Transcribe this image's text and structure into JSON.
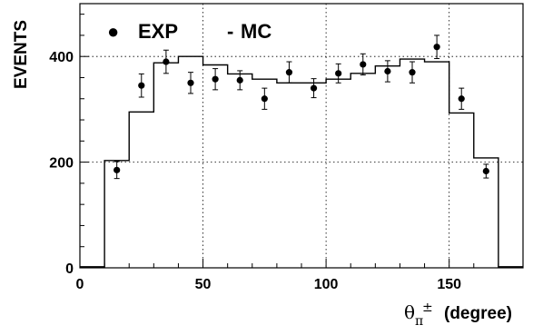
{
  "chart_data": {
    "type": "histogram+scatter",
    "ylabel": "EVENTS",
    "xlabel_symbol": "θ",
    "xlabel_sub": "π",
    "xlabel_sup": "±",
    "xlabel_unit": "(degree)",
    "xlim": [
      0,
      180
    ],
    "ylim": [
      0,
      500
    ],
    "x_ticks": [
      0,
      50,
      100,
      150
    ],
    "y_ticks": [
      0,
      200,
      400
    ],
    "grid": true,
    "legend_position": "top-left",
    "legend": [
      {
        "marker": "●",
        "label": "EXP"
      },
      {
        "marker": "-",
        "label": "MC"
      }
    ],
    "mc_histogram": {
      "name": "MC",
      "bin_edges": [
        0,
        10,
        20,
        30,
        40,
        50,
        60,
        70,
        80,
        90,
        100,
        110,
        120,
        130,
        140,
        150,
        160,
        170,
        180
      ],
      "values": [
        2,
        203,
        295,
        388,
        400,
        384,
        367,
        357,
        350,
        350,
        357,
        368,
        382,
        395,
        390,
        293,
        208,
        2
      ]
    },
    "exp_points": {
      "name": "EXP",
      "x": [
        15,
        25,
        35,
        45,
        55,
        65,
        75,
        85,
        95,
        105,
        115,
        125,
        135,
        145,
        155,
        165
      ],
      "y": [
        185,
        345,
        390,
        350,
        357,
        355,
        320,
        370,
        340,
        368,
        385,
        372,
        370,
        418,
        320,
        183
      ],
      "err": [
        16,
        22,
        22,
        20,
        20,
        18,
        20,
        20,
        18,
        18,
        20,
        20,
        20,
        22,
        20,
        13
      ]
    }
  }
}
